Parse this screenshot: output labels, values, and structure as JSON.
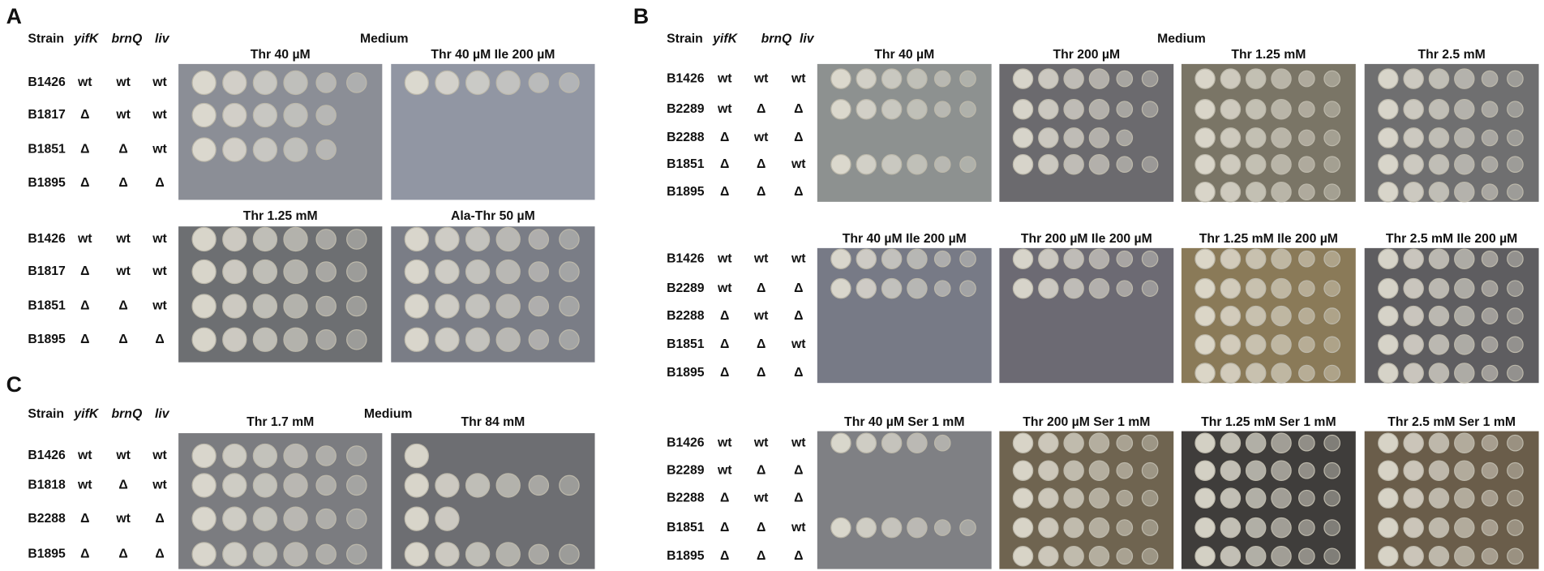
{
  "panels": [
    {
      "label": "A",
      "header": {
        "strain": "Strain",
        "genes": [
          "yifK",
          "brnQ",
          "liv"
        ],
        "medium": "Medium"
      },
      "blocks": [
        {
          "plates": [
            "Thr 40 µM",
            "Thr 40 µM Ile 200 µM"
          ],
          "rows": [
            [
              "B1426",
              "wt",
              "wt",
              "wt"
            ],
            [
              "B1817",
              "Δ",
              "wt",
              "wt"
            ],
            [
              "B1851",
              "Δ",
              "Δ",
              "wt"
            ],
            [
              "B1895",
              "Δ",
              "Δ",
              "Δ"
            ]
          ]
        },
        {
          "plates": [
            "Thr 1.25 mM",
            "Ala-Thr 50 µM"
          ],
          "rows": [
            [
              "B1426",
              "wt",
              "wt",
              "wt"
            ],
            [
              "B1817",
              "Δ",
              "wt",
              "wt"
            ],
            [
              "B1851",
              "Δ",
              "Δ",
              "wt"
            ],
            [
              "B1895",
              "Δ",
              "Δ",
              "Δ"
            ]
          ]
        }
      ]
    },
    {
      "label": "B",
      "header": {
        "strain": "Strain",
        "genes": [
          "yifK",
          "brnQ",
          "liv"
        ],
        "medium": "Medium"
      },
      "blocks": [
        {
          "plates": [
            "Thr 40 µM",
            "Thr 200 µM",
            "Thr 1.25 mM",
            "Thr 2.5 mM"
          ],
          "rows": [
            [
              "B1426",
              "wt",
              "wt",
              "wt"
            ],
            [
              "B2289",
              "wt",
              "Δ",
              "Δ"
            ],
            [
              "B2288",
              "Δ",
              "wt",
              "Δ"
            ],
            [
              "B1851",
              "Δ",
              "Δ",
              "wt"
            ],
            [
              "B1895",
              "Δ",
              "Δ",
              "Δ"
            ]
          ]
        },
        {
          "plates": [
            "Thr 40 µM Ile 200 µM",
            "Thr 200 µM Ile 200 µM",
            "Thr 1.25 mM Ile 200 µM",
            "Thr 2.5 mM Ile 200 µM"
          ],
          "rows": [
            [
              "B1426",
              "wt",
              "wt",
              "wt"
            ],
            [
              "B2289",
              "wt",
              "Δ",
              "Δ"
            ],
            [
              "B2288",
              "Δ",
              "wt",
              "Δ"
            ],
            [
              "B1851",
              "Δ",
              "Δ",
              "wt"
            ],
            [
              "B1895",
              "Δ",
              "Δ",
              "Δ"
            ]
          ]
        },
        {
          "plates": [
            "Thr 40 µM Ser 1 mM",
            "Thr 200 µM Ser 1 mM",
            "Thr 1.25 mM Ser 1 mM",
            "Thr 2.5 mM Ser 1 mM"
          ],
          "rows": [
            [
              "B1426",
              "wt",
              "wt",
              "wt"
            ],
            [
              "B2289",
              "wt",
              "Δ",
              "Δ"
            ],
            [
              "B2288",
              "Δ",
              "wt",
              "Δ"
            ],
            [
              "B1851",
              "Δ",
              "Δ",
              "wt"
            ],
            [
              "B1895",
              "Δ",
              "Δ",
              "Δ"
            ]
          ]
        }
      ]
    },
    {
      "label": "C",
      "header": {
        "strain": "Strain",
        "genes": [
          "yifK",
          "brnQ",
          "liv"
        ],
        "medium": "Medium"
      },
      "blocks": [
        {
          "plates": [
            "Thr 1.7 mM",
            "Thr 84 mM"
          ],
          "rows": [
            [
              "B1426",
              "wt",
              "wt",
              "wt"
            ],
            [
              "B1818",
              "wt",
              "Δ",
              "wt"
            ],
            [
              "B2288",
              "Δ",
              "wt",
              "Δ"
            ],
            [
              "B1895",
              "Δ",
              "Δ",
              "Δ"
            ]
          ]
        }
      ]
    }
  ]
}
